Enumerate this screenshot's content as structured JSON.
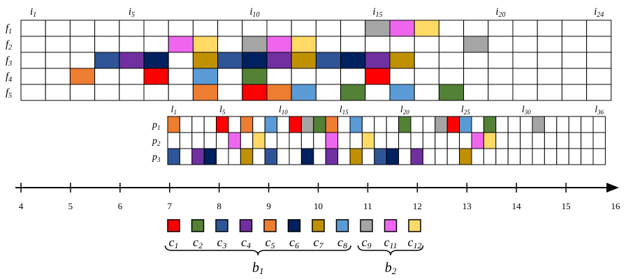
{
  "colors": {
    "c1": "#ff0000",
    "c2": "#538135",
    "c3": "#2f5597",
    "c4": "#7030a0",
    "c5": "#ed7d31",
    "c6": "#002060",
    "c7": "#bf9000",
    "c8": "#5b9bd5",
    "c9": "#a5a5a5",
    "c11": "#ee66ee",
    "c12": "#ffd966"
  },
  "top_grid": {
    "columns": 24,
    "col_labels": [
      {
        "col": 1,
        "base": "i",
        "sub": "1"
      },
      {
        "col": 5,
        "base": "i",
        "sub": "5"
      },
      {
        "col": 10,
        "base": "i",
        "sub": "10"
      },
      {
        "col": 15,
        "base": "i",
        "sub": "15"
      },
      {
        "col": 20,
        "base": "i",
        "sub": "20"
      },
      {
        "col": 24,
        "base": "i",
        "sub": "24"
      }
    ],
    "rows": [
      {
        "base": "f",
        "sub": "1",
        "cells": {
          "15": "c9",
          "16": "c11",
          "17": "c12"
        }
      },
      {
        "base": "f",
        "sub": "2",
        "cells": {
          "7": "c11",
          "8": "c12",
          "10": "c9",
          "11": "c11",
          "12": "c12",
          "19": "c9"
        }
      },
      {
        "base": "f",
        "sub": "3",
        "cells": {
          "4": "c3",
          "5": "c4",
          "6": "c6",
          "8": "c7",
          "9": "c3",
          "10": "c6",
          "11": "c4",
          "12": "c7",
          "13": "c3",
          "14": "c6",
          "15": "c4",
          "16": "c7"
        }
      },
      {
        "base": "f",
        "sub": "4",
        "cells": {
          "3": "c5",
          "6": "c1",
          "8": "c8",
          "10": "c2",
          "15": "c1"
        }
      },
      {
        "base": "f",
        "sub": "5",
        "cells": {
          "8": "c5",
          "10": "c1",
          "11": "c5",
          "12": "c8",
          "14": "c2",
          "16": "c8",
          "18": "c2"
        }
      }
    ]
  },
  "bottom_grid": {
    "columns": 36,
    "col_labels": [
      {
        "col": 1,
        "base": "l",
        "sub": "1"
      },
      {
        "col": 5,
        "base": "l",
        "sub": "5"
      },
      {
        "col": 10,
        "base": "l",
        "sub": "10"
      },
      {
        "col": 15,
        "base": "l",
        "sub": "15"
      },
      {
        "col": 20,
        "base": "l",
        "sub": "20"
      },
      {
        "col": 25,
        "base": "l",
        "sub": "25"
      },
      {
        "col": 30,
        "base": "l",
        "sub": "30"
      },
      {
        "col": 36,
        "base": "l",
        "sub": "36"
      }
    ],
    "rows": [
      {
        "base": "p",
        "sub": "1",
        "cells": {
          "1": "c5",
          "5": "c1",
          "7": "c5",
          "9": "c8",
          "11": "c1",
          "12": "c9",
          "13": "c2",
          "14": "c5",
          "16": "c8",
          "20": "c2",
          "23": "c9",
          "24": "c1",
          "25": "c8",
          "27": "c2",
          "31": "c9"
        }
      },
      {
        "base": "p",
        "sub": "2",
        "cells": {
          "6": "c11",
          "8": "c12",
          "14": "c11",
          "17": "c12",
          "26": "c11",
          "27": "c12"
        }
      },
      {
        "base": "p",
        "sub": "3",
        "cells": {
          "1": "c3",
          "3": "c4",
          "4": "c6",
          "7": "c7",
          "9": "c3",
          "12": "c6",
          "14": "c4",
          "16": "c7",
          "18": "c3",
          "19": "c6",
          "21": "c4",
          "25": "c7"
        }
      }
    ]
  },
  "axis": {
    "min": 4,
    "max": 16,
    "ticks": [
      "4",
      "5",
      "6",
      "7",
      "8",
      "9",
      "10",
      "11",
      "12",
      "13",
      "14",
      "15",
      "16"
    ]
  },
  "legend": {
    "items": [
      {
        "key": "c1",
        "base": "c",
        "sub": "1"
      },
      {
        "key": "c2",
        "base": "c",
        "sub": "2"
      },
      {
        "key": "c3",
        "base": "c",
        "sub": "3"
      },
      {
        "key": "c4",
        "base": "c",
        "sub": "4"
      },
      {
        "key": "c5",
        "base": "c",
        "sub": "5"
      },
      {
        "key": "c6",
        "base": "c",
        "sub": "6"
      },
      {
        "key": "c7",
        "base": "c",
        "sub": "7"
      },
      {
        "key": "c8",
        "base": "c",
        "sub": "8"
      },
      {
        "key": "c9",
        "base": "c",
        "sub": "9"
      },
      {
        "key": "c11",
        "base": "c",
        "sub": "11"
      },
      {
        "key": "c12",
        "base": "c",
        "sub": "12"
      }
    ],
    "groups": [
      {
        "base": "b",
        "sub": "1",
        "from": 0,
        "to": 7
      },
      {
        "base": "b",
        "sub": "2",
        "from": 8,
        "to": 10
      }
    ]
  }
}
